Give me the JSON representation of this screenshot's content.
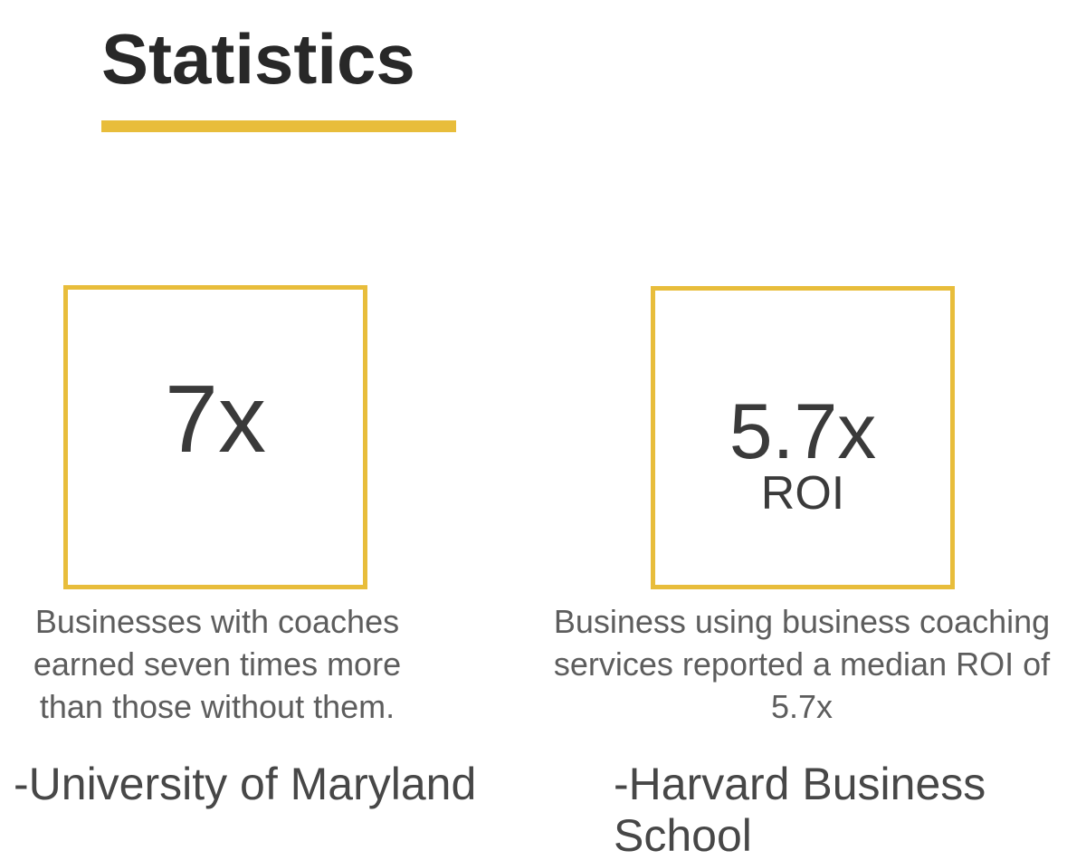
{
  "colors": {
    "accent": "#E8BD3B",
    "title_text": "#282828",
    "stat_text": "#3a3a3a",
    "caption_text": "#5d5d5d",
    "source_text": "#474747",
    "background": "#ffffff"
  },
  "header": {
    "title": "Statistics"
  },
  "stats": [
    {
      "value": "7x",
      "sub_value": "",
      "caption": "Businesses with coaches earned seven times more than those without them.",
      "caption_lines": [
        "Businesses with coaches",
        "earned seven times more",
        "than those without them."
      ],
      "source": "-University of Maryland",
      "source_lines": [
        "-University of Maryland"
      ]
    },
    {
      "value": "5.7x",
      "sub_value": "ROI",
      "caption": "Business using business coaching services reported a median ROI of 5.7x",
      "caption_lines": [
        "Business using business coaching",
        "services reported a median ROI of",
        "5.7x"
      ],
      "source": "-Harvard Business School",
      "source_lines": [
        "-Harvard Business",
        "School"
      ]
    }
  ]
}
